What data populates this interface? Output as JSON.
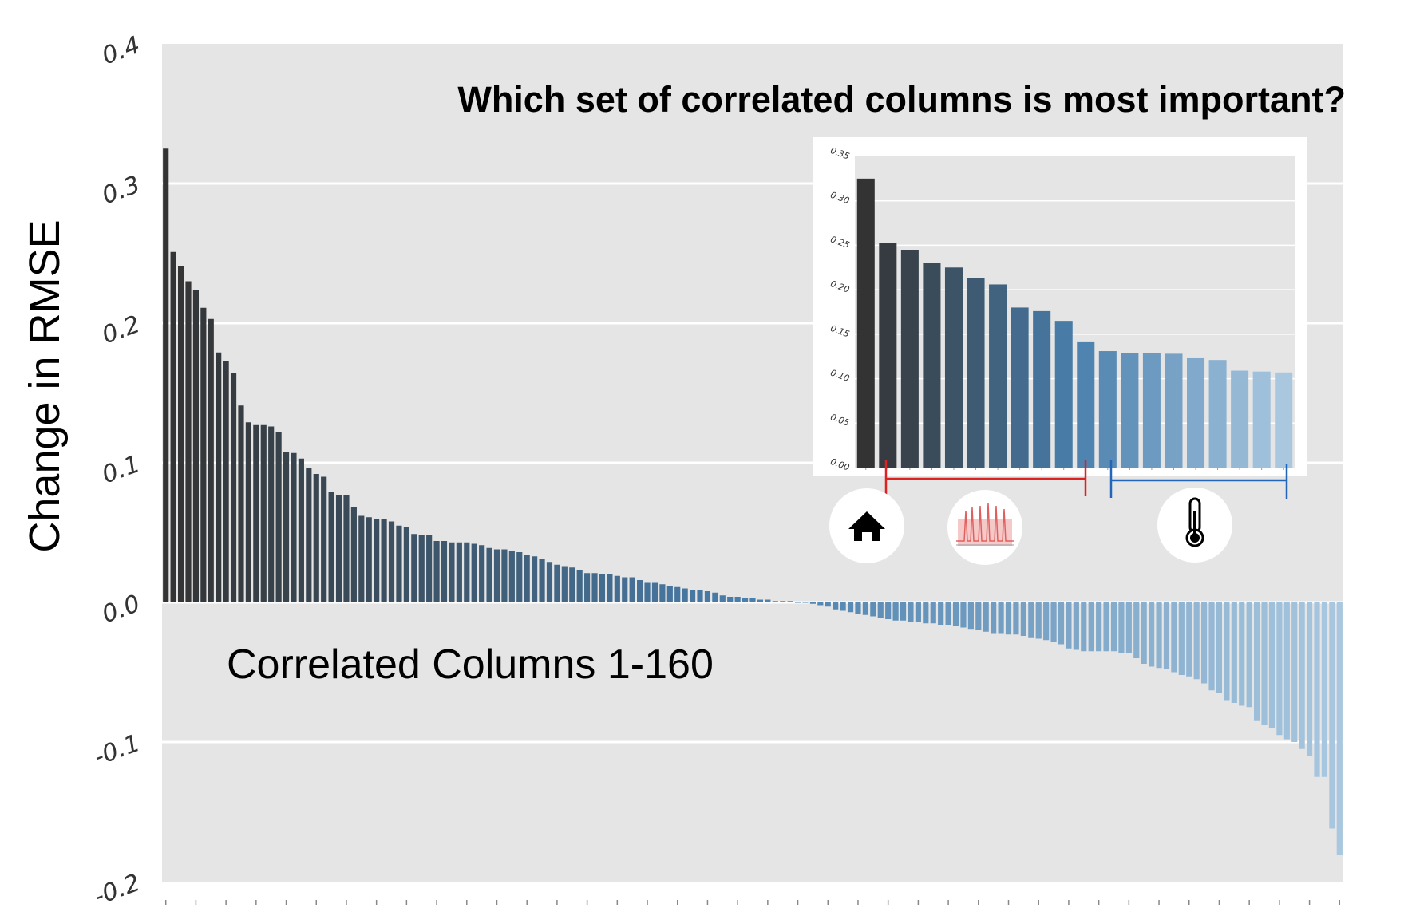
{
  "chart_data": [
    {
      "type": "bar",
      "title": "Which set of correlated columns is most important?",
      "ylabel": "Change in RMSE",
      "annotation": "Correlated Columns 1-160",
      "ylim": [
        -0.2,
        0.4
      ],
      "yticks": [
        "-0.2",
        "-0.1",
        "0.0",
        "0.1",
        "0.2",
        "0.3",
        "0.4"
      ],
      "ytick_values": [
        -0.2,
        -0.1,
        0.0,
        0.1,
        0.2,
        0.3,
        0.4
      ],
      "grid": true,
      "color_start": "#333333",
      "color_mid": "#4a7fad",
      "color_end": "#a9c8e0",
      "background": "#e5e5e5",
      "values": [
        0.325,
        0.251,
        0.241,
        0.23,
        0.224,
        0.211,
        0.203,
        0.179,
        0.173,
        0.164,
        0.141,
        0.129,
        0.127,
        0.127,
        0.126,
        0.122,
        0.108,
        0.107,
        0.103,
        0.096,
        0.092,
        0.09,
        0.079,
        0.077,
        0.077,
        0.068,
        0.062,
        0.061,
        0.06,
        0.06,
        0.058,
        0.055,
        0.054,
        0.049,
        0.048,
        0.048,
        0.044,
        0.044,
        0.043,
        0.043,
        0.043,
        0.042,
        0.041,
        0.039,
        0.038,
        0.038,
        0.037,
        0.036,
        0.034,
        0.033,
        0.031,
        0.029,
        0.027,
        0.026,
        0.025,
        0.023,
        0.021,
        0.021,
        0.02,
        0.02,
        0.019,
        0.018,
        0.018,
        0.016,
        0.014,
        0.014,
        0.013,
        0.012,
        0.011,
        0.01,
        0.009,
        0.009,
        0.008,
        0.007,
        0.005,
        0.004,
        0.004,
        0.003,
        0.003,
        0.002,
        0.002,
        0.001,
        0.001,
        0.001,
        0.0,
        0.0,
        -0.001,
        -0.002,
        -0.003,
        -0.005,
        -0.006,
        -0.007,
        -0.008,
        -0.009,
        -0.01,
        -0.011,
        -0.012,
        -0.013,
        -0.013,
        -0.014,
        -0.014,
        -0.015,
        -0.015,
        -0.016,
        -0.016,
        -0.017,
        -0.018,
        -0.019,
        -0.02,
        -0.021,
        -0.022,
        -0.022,
        -0.023,
        -0.023,
        -0.024,
        -0.025,
        -0.026,
        -0.027,
        -0.028,
        -0.03,
        -0.033,
        -0.034,
        -0.035,
        -0.035,
        -0.035,
        -0.035,
        -0.035,
        -0.036,
        -0.036,
        -0.04,
        -0.044,
        -0.046,
        -0.047,
        -0.048,
        -0.05,
        -0.052,
        -0.053,
        -0.055,
        -0.058,
        -0.063,
        -0.065,
        -0.07,
        -0.072,
        -0.074,
        -0.075,
        -0.085,
        -0.088,
        -0.09,
        -0.095,
        -0.098,
        -0.1,
        -0.105,
        -0.11,
        -0.125,
        -0.125,
        -0.162,
        -0.181
      ]
    },
    {
      "type": "bar",
      "ylim": [
        0,
        0.35
      ],
      "yticks": [
        "0.00",
        "0.05",
        "0.10",
        "0.15",
        "0.20",
        "0.25",
        "0.30",
        "0.35"
      ],
      "ytick_values": [
        0,
        0.05,
        0.1,
        0.15,
        0.2,
        0.25,
        0.3,
        0.35
      ],
      "grid": true,
      "values": [
        0.325,
        0.253,
        0.245,
        0.23,
        0.225,
        0.213,
        0.206,
        0.18,
        0.176,
        0.165,
        0.141,
        0.131,
        0.129,
        0.129,
        0.128,
        0.123,
        0.121,
        0.109,
        0.108,
        0.107
      ],
      "groups": [
        {
          "icon": "house-icon",
          "start": 1,
          "end": 1
        },
        {
          "icon": "time-series-icon",
          "start": 2,
          "end": 10,
          "bracket_color": "#dd2222"
        },
        {
          "icon": "thermometer-icon",
          "start": 11,
          "end": 20,
          "bracket_color": "#2266bb"
        }
      ]
    }
  ]
}
